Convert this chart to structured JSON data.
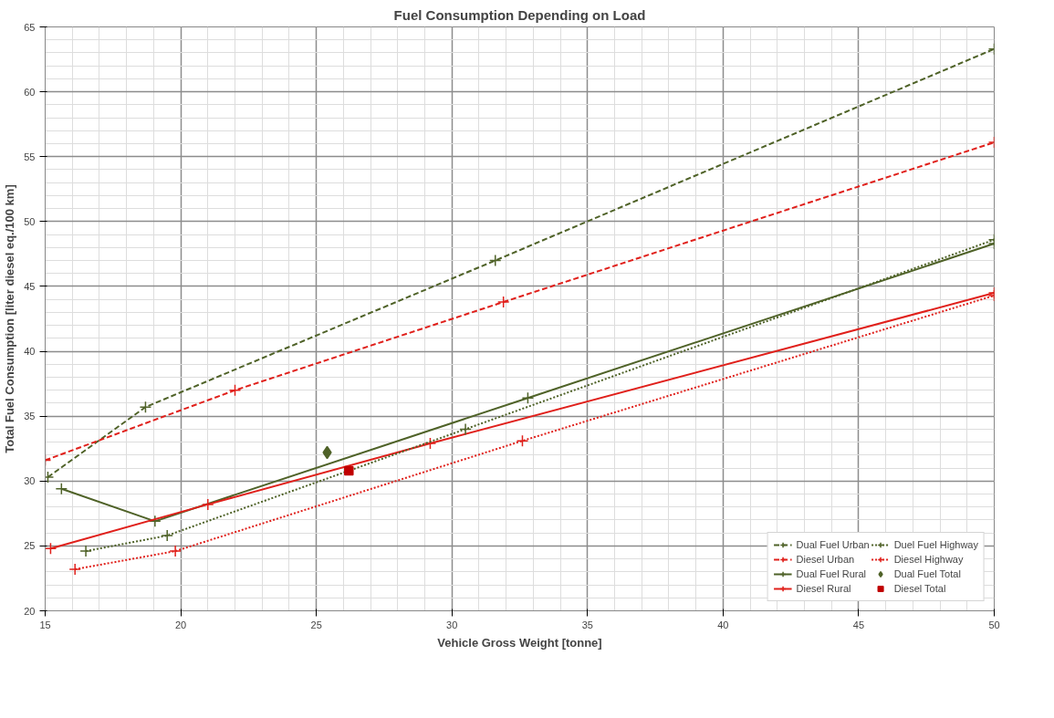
{
  "chart_data": {
    "type": "line",
    "title": "Fuel Consumption Depending on Load",
    "xlabel": "Vehicle Gross Weight [tonne]",
    "ylabel": "Total Fuel Consumption [liter diesel eq./100 km]",
    "xlim": [
      15,
      50
    ],
    "xticks": [
      15,
      20,
      25,
      30,
      35,
      40,
      45,
      50
    ],
    "ylim": [
      20,
      65
    ],
    "yticks": [
      20,
      25,
      30,
      35,
      40,
      45,
      50,
      55,
      60,
      65
    ],
    "grid": true,
    "legend": "bottom right",
    "series": [
      {
        "name": "Dual Fuel Urban",
        "color": "#4f6228",
        "line_style": "dashed",
        "marker": "cross",
        "x": [
          15.1,
          18.7,
          31.6,
          50
        ],
        "values": [
          30.3,
          35.7,
          47.0,
          63.3
        ]
      },
      {
        "name": "Diesel Urban",
        "color": "#e0201b",
        "line_style": "dashed",
        "marker": "cross",
        "x": [
          15,
          22.0,
          31.9,
          50
        ],
        "values": [
          31.6,
          37.0,
          43.8,
          56.1
        ]
      },
      {
        "name": "Dual Fuel Rural",
        "color": "#4f6228",
        "line_style": "solid",
        "marker": "cross",
        "x": [
          15.6,
          19.05,
          32.8,
          50
        ],
        "values": [
          29.4,
          26.9,
          36.4,
          48.3
        ]
      },
      {
        "name": "Diesel Rural",
        "color": "#e0201b",
        "line_style": "solid",
        "marker": "cross",
        "x": [
          15.2,
          21.0,
          29.2,
          50
        ],
        "values": [
          24.8,
          28.2,
          32.9,
          44.5
        ]
      },
      {
        "name": "Duel Fuel Highway",
        "color": "#4f6228",
        "line_style": "dotted",
        "marker": "cross",
        "x": [
          16.5,
          19.5,
          30.5,
          50
        ],
        "values": [
          24.6,
          25.8,
          34.0,
          48.6
        ]
      },
      {
        "name": "Diesel Highway",
        "color": "#e0201b",
        "line_style": "dotted",
        "marker": "cross",
        "x": [
          16.1,
          19.8,
          32.6,
          50
        ],
        "values": [
          23.2,
          24.6,
          33.1,
          44.3
        ]
      },
      {
        "name": "Dual Fuel Total",
        "type": "scatter",
        "color": "#4f6228",
        "marker": "diamond",
        "x": [
          25.4
        ],
        "values": [
          32.2
        ]
      },
      {
        "name": "Diesel Total",
        "type": "scatter",
        "color": "#c00000",
        "marker": "square",
        "x": [
          26.2
        ],
        "values": [
          30.8
        ]
      }
    ]
  }
}
